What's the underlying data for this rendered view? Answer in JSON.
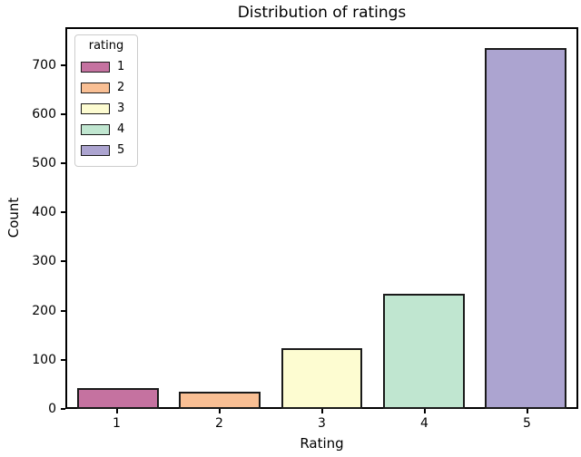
{
  "chart_data": {
    "type": "bar",
    "title": "Distribution of ratings",
    "xlabel": "Rating",
    "ylabel": "Count",
    "categories": [
      "1",
      "2",
      "3",
      "4",
      "5"
    ],
    "values": [
      43,
      35,
      124,
      237,
      742
    ],
    "bar_colors": [
      "#c572a0",
      "#f9bf94",
      "#fdfcd1",
      "#c0e6d0",
      "#aca4d0"
    ],
    "bar_edge_color": "#1a1a1a",
    "bar_width": 0.8,
    "ylim": [
      0,
      777
    ],
    "yticks": [
      0,
      100,
      200,
      300,
      400,
      500,
      600,
      700
    ],
    "grid": false,
    "background_color": "#ffffff",
    "legend": {
      "title": "rating",
      "position": "upper-left",
      "entries": [
        {
          "label": "1",
          "color": "#c572a0"
        },
        {
          "label": "2",
          "color": "#f9bf94"
        },
        {
          "label": "3",
          "color": "#fdfcd1"
        },
        {
          "label": "4",
          "color": "#c0e6d0"
        },
        {
          "label": "5",
          "color": "#aca4d0"
        }
      ]
    }
  }
}
